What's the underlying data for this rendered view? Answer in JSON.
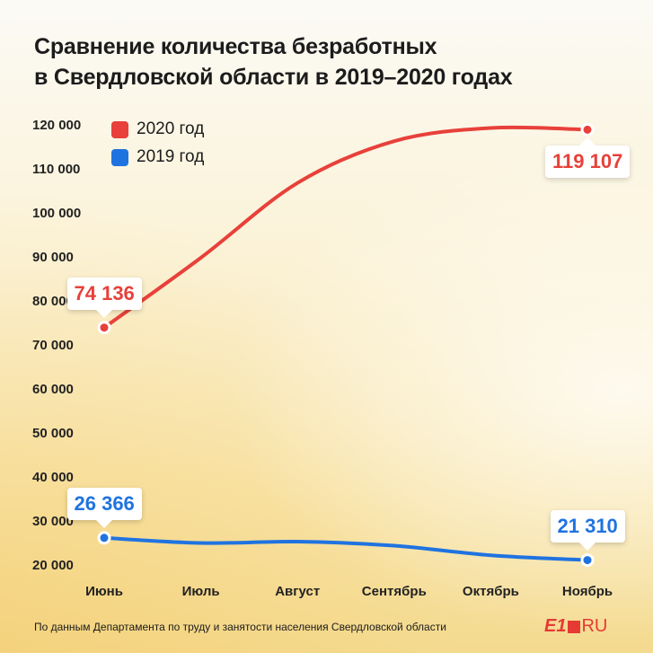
{
  "title": {
    "line1": "Сравнение количества безработных",
    "line2": "в Свердловской области в 2019–2020 годах"
  },
  "colors": {
    "series_2020": "#e8403a",
    "series_2019": "#1f73e0"
  },
  "chart_data": {
    "type": "line",
    "title": "Сравнение количества безработных в Свердловской области в 2019–2020 годах",
    "xlabel": "",
    "ylabel": "",
    "categories": [
      "Июнь",
      "Июль",
      "Август",
      "Сентябрь",
      "Октябрь",
      "Ноябрь"
    ],
    "ylim": [
      20000,
      120000
    ],
    "yticks": [
      20000,
      30000,
      40000,
      50000,
      60000,
      70000,
      80000,
      90000,
      100000,
      110000,
      120000
    ],
    "ytick_labels": [
      "20 000",
      "30 000",
      "40 000",
      "50 000",
      "60 000",
      "70 000",
      "80 000",
      "90 000",
      "100 000",
      "110 000",
      "120 000"
    ],
    "legend": {
      "position": "top-left",
      "entries": [
        "2020 год",
        "2019 год"
      ]
    },
    "series": [
      {
        "name": "2020 год",
        "color": "#e8403a",
        "values": [
          74136,
          90000,
          107000,
          116500,
          119500,
          119107
        ]
      },
      {
        "name": "2019 год",
        "color": "#1f73e0",
        "values": [
          26366,
          25200,
          25500,
          24600,
          22400,
          21310
        ]
      }
    ],
    "annotations": [
      {
        "series": "2020 год",
        "index": 0,
        "text": "74 136"
      },
      {
        "series": "2020 год",
        "index": 5,
        "text": "119 107"
      },
      {
        "series": "2019 год",
        "index": 0,
        "text": "26 366"
      },
      {
        "series": "2019 год",
        "index": 5,
        "text": "21 310"
      }
    ]
  },
  "footer": {
    "source": "По данным Департамента по труду и занятости населения Свердловской области",
    "logo_e1": "E1",
    "logo_ru": "RU"
  }
}
